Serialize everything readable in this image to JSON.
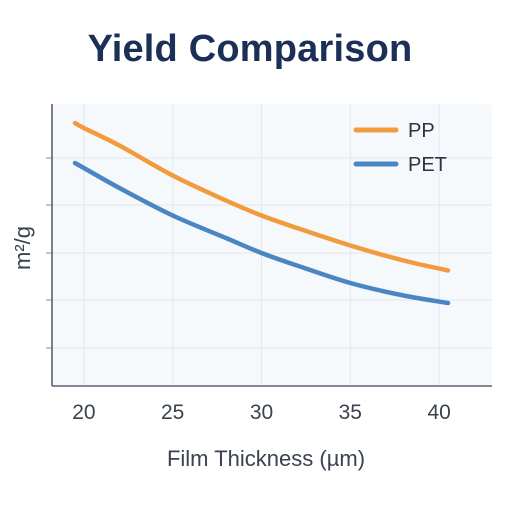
{
  "chart_data": {
    "type": "line",
    "title": "Yield Comparison",
    "xlabel": "Film Thickness (µm)",
    "ylabel": "m²/g",
    "x_ticks": [
      20,
      25,
      30,
      35,
      40
    ],
    "xlim": [
      19.5,
      40.5
    ],
    "ylim": [
      0,
      1
    ],
    "grid": true,
    "legend_position": "top-right",
    "series": [
      {
        "name": "PP",
        "color": "#f29a3e",
        "points": [
          [
            19.5,
            0.9
          ],
          [
            20,
            0.88
          ],
          [
            22,
            0.81
          ],
          [
            25,
            0.69
          ],
          [
            28,
            0.59
          ],
          [
            30,
            0.53
          ],
          [
            32,
            0.48
          ],
          [
            35,
            0.41
          ],
          [
            38,
            0.35
          ],
          [
            40.5,
            0.31
          ]
        ]
      },
      {
        "name": "PET",
        "color": "#4a87c2",
        "points": [
          [
            19.5,
            0.74
          ],
          [
            20,
            0.72
          ],
          [
            22,
            0.64
          ],
          [
            25,
            0.53
          ],
          [
            28,
            0.44
          ],
          [
            30,
            0.38
          ],
          [
            32,
            0.33
          ],
          [
            35,
            0.26
          ],
          [
            38,
            0.21
          ],
          [
            40.5,
            0.18
          ]
        ]
      }
    ]
  }
}
